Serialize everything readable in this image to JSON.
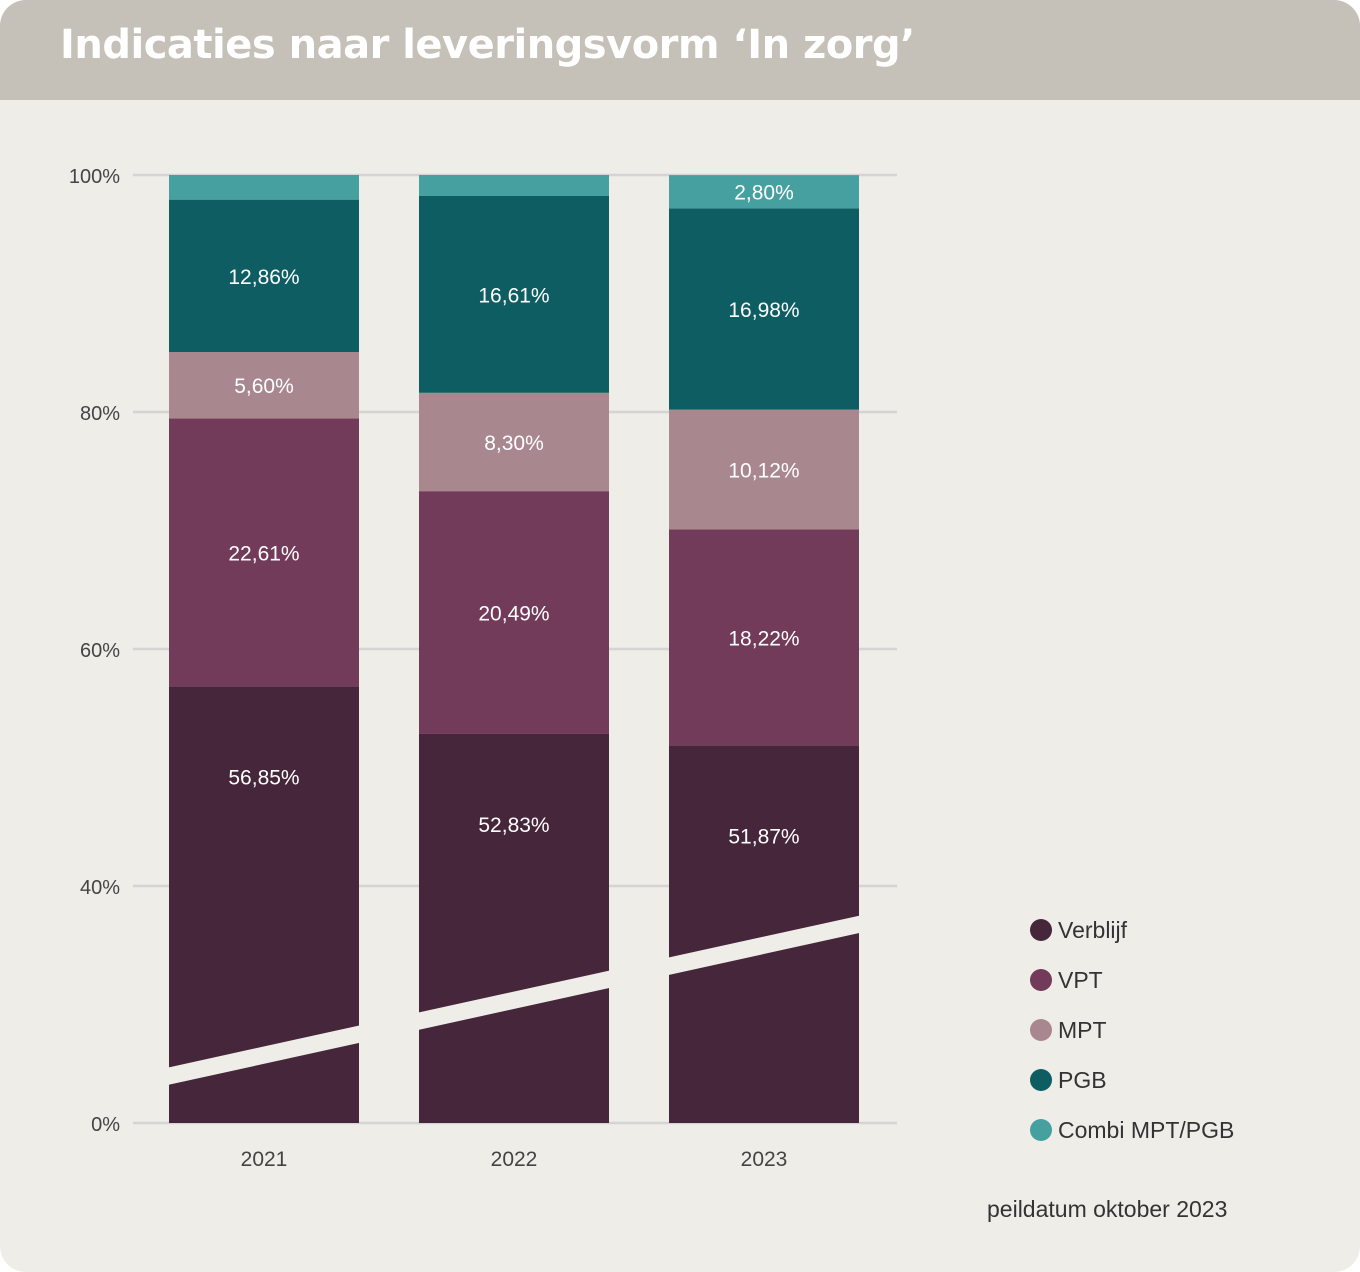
{
  "title": "Indicaties naar leveringsvorm ‘In zorg’",
  "footnote": "peildatum oktober 2023",
  "chart_data": {
    "type": "bar",
    "stacked": true,
    "axis_break": true,
    "categories": [
      "2021",
      "2022",
      "2023"
    ],
    "y_ticks": [
      "0%",
      "40%",
      "60%",
      "80%",
      "100%"
    ],
    "ylim": [
      0,
      100
    ],
    "grid": true,
    "legend_position": "right",
    "series": [
      {
        "name": "Verblijf",
        "color": "#46263a",
        "values": [
          56.85,
          52.83,
          51.87
        ],
        "labels": [
          "56,85%",
          "52,83%",
          "51,87%"
        ]
      },
      {
        "name": "VPT",
        "color": "#723b59",
        "values": [
          22.61,
          20.49,
          18.22
        ],
        "labels": [
          "22,61%",
          "20,49%",
          "18,22%"
        ]
      },
      {
        "name": "MPT",
        "color": "#a8878f",
        "values": [
          5.6,
          8.3,
          10.12
        ],
        "labels": [
          "5,60%",
          "8,30%",
          "10,12%"
        ]
      },
      {
        "name": "PGB",
        "color": "#0e5d63",
        "values": [
          12.86,
          16.61,
          16.98
        ],
        "labels": [
          "12,86%",
          "16,61%",
          "16,98%"
        ]
      },
      {
        "name": "Combi MPT/PGB",
        "color": "#45a09f",
        "values": [
          2.08,
          1.77,
          2.8
        ],
        "labels": [
          "",
          "",
          "2,80%"
        ]
      }
    ]
  }
}
